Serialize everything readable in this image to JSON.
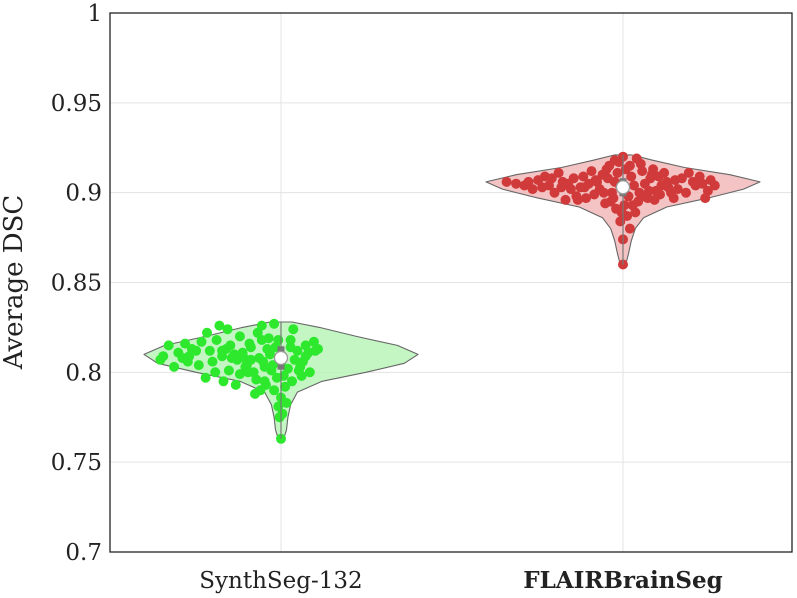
{
  "chart_data": {
    "type": "violin",
    "ylabel": "Average DSC",
    "ylim": [
      0.7,
      1.0
    ],
    "yticks": [
      {
        "value": 0.7,
        "label": "0.7"
      },
      {
        "value": 0.75,
        "label": "0.75"
      },
      {
        "value": 0.8,
        "label": "0.8"
      },
      {
        "value": 0.85,
        "label": "0.85"
      },
      {
        "value": 0.9,
        "label": "0.9"
      },
      {
        "value": 0.95,
        "label": "0.95"
      },
      {
        "value": 1.0,
        "label": "1"
      }
    ],
    "grid": true,
    "categories": [
      "SynthSeg-132",
      "FLAIRBrainSeg"
    ],
    "bold_categories": [
      "FLAIRBrainSeg"
    ],
    "series": [
      {
        "category": "SynthSeg-132",
        "color": "#2ee82e",
        "fill": "#b8f5b8",
        "median": 0.808,
        "q1": 0.8015,
        "q3": 0.8145,
        "range": [
          0.763,
          0.828
        ],
        "density": [
          [
            0.763,
            0.02
          ],
          [
            0.768,
            0.04
          ],
          [
            0.775,
            0.05
          ],
          [
            0.782,
            0.07
          ],
          [
            0.789,
            0.12
          ],
          [
            0.795,
            0.3
          ],
          [
            0.8,
            0.62
          ],
          [
            0.805,
            0.9
          ],
          [
            0.81,
            1.0
          ],
          [
            0.815,
            0.85
          ],
          [
            0.82,
            0.55
          ],
          [
            0.825,
            0.28
          ],
          [
            0.828,
            0.08
          ]
        ],
        "points": [
          [
            0.3,
            0.816
          ],
          [
            0.18,
            0.815
          ],
          [
            0.25,
            0.811
          ],
          [
            0.14,
            0.809
          ],
          [
            0.32,
            0.806
          ],
          [
            0.22,
            0.803
          ],
          [
            0.38,
            0.812
          ],
          [
            0.28,
            0.808
          ],
          [
            0.12,
            0.807
          ],
          [
            0.35,
            0.813
          ],
          [
            0.42,
            0.817
          ],
          [
            0.46,
            0.822
          ],
          [
            0.48,
            0.812
          ],
          [
            0.5,
            0.806
          ],
          [
            0.53,
            0.818
          ],
          [
            0.55,
            0.826
          ],
          [
            0.57,
            0.809
          ],
          [
            0.6,
            0.813
          ],
          [
            0.61,
            0.824
          ],
          [
            0.63,
            0.815
          ],
          [
            0.66,
            0.81
          ],
          [
            0.68,
            0.807
          ],
          [
            0.7,
            0.82
          ],
          [
            0.72,
            0.811
          ],
          [
            0.74,
            0.803
          ],
          [
            0.77,
            0.816
          ],
          [
            0.45,
            0.797
          ],
          [
            0.52,
            0.8
          ],
          [
            0.58,
            0.795
          ],
          [
            0.62,
            0.801
          ],
          [
            0.67,
            0.793
          ],
          [
            0.7,
            0.799
          ],
          [
            0.73,
            0.808
          ],
          [
            0.75,
            0.804
          ],
          [
            0.78,
            0.814
          ],
          [
            0.8,
            0.8
          ],
          [
            0.82,
            0.796
          ],
          [
            0.84,
            0.808
          ],
          [
            0.86,
            0.818
          ],
          [
            0.88,
            0.803
          ],
          [
            0.9,
            0.813
          ],
          [
            0.92,
            0.81
          ],
          [
            0.94,
            0.804
          ],
          [
            0.96,
            0.814
          ],
          [
            0.98,
            0.818
          ],
          [
            1.0,
            0.805
          ],
          [
            1.02,
            0.798
          ],
          [
            1.05,
            0.802
          ],
          [
            1.07,
            0.818
          ],
          [
            1.1,
            0.807
          ],
          [
            1.12,
            0.812
          ],
          [
            1.15,
            0.798
          ],
          [
            1.18,
            0.815
          ],
          [
            1.21,
            0.8
          ],
          [
            1.24,
            0.817
          ],
          [
            1.27,
            0.813
          ],
          [
            0.95,
            0.79
          ],
          [
            1.0,
            0.786
          ],
          [
            1.03,
            0.792
          ],
          [
            0.98,
            0.781
          ],
          [
            1.01,
            0.777
          ],
          [
            1.04,
            0.783
          ],
          [
            0.99,
            0.775
          ],
          [
            1.0,
            0.763
          ],
          [
            0.97,
            0.797
          ],
          [
            1.08,
            0.795
          ],
          [
            1.13,
            0.801
          ],
          [
            1.16,
            0.806
          ],
          [
            0.88,
            0.795
          ],
          [
            0.93,
            0.801
          ],
          [
            0.85,
            0.79
          ],
          [
            0.89,
            0.793
          ],
          [
            0.76,
            0.8
          ],
          [
            0.81,
            0.788
          ],
          [
            0.87,
            0.806
          ],
          [
            0.64,
            0.808
          ],
          [
            0.57,
            0.812
          ],
          [
            0.4,
            0.804
          ],
          [
            0.33,
            0.809
          ],
          [
            1.2,
            0.811
          ],
          [
            1.07,
            0.814
          ],
          [
            0.91,
            0.819
          ],
          [
            0.95,
            0.827
          ],
          [
            1.09,
            0.824
          ],
          [
            0.83,
            0.822
          ],
          [
            0.86,
            0.826
          ],
          [
            0.78,
            0.807
          ],
          [
            1.14,
            0.803
          ],
          [
            1.18,
            0.809
          ],
          [
            1.25,
            0.812
          ]
        ]
      },
      {
        "category": "FLAIRBrainSeg",
        "color": "#d13a3a",
        "fill": "#f2b8b8",
        "median": 0.903,
        "q1": 0.898,
        "q3": 0.908,
        "range": [
          0.86,
          0.921
        ],
        "density": [
          [
            0.86,
            0.02
          ],
          [
            0.866,
            0.04
          ],
          [
            0.873,
            0.06
          ],
          [
            0.88,
            0.09
          ],
          [
            0.886,
            0.15
          ],
          [
            0.892,
            0.32
          ],
          [
            0.897,
            0.62
          ],
          [
            0.902,
            0.88
          ],
          [
            0.906,
            1.0
          ],
          [
            0.91,
            0.78
          ],
          [
            0.914,
            0.45
          ],
          [
            0.918,
            0.22
          ],
          [
            0.921,
            0.06
          ]
        ],
        "points": [
          [
            0.15,
            0.906
          ],
          [
            0.22,
            0.905
          ],
          [
            0.28,
            0.904
          ],
          [
            0.34,
            0.902
          ],
          [
            0.38,
            0.907
          ],
          [
            0.43,
            0.909
          ],
          [
            0.46,
            0.904
          ],
          [
            0.5,
            0.9
          ],
          [
            0.53,
            0.911
          ],
          [
            0.56,
            0.906
          ],
          [
            0.58,
            0.896
          ],
          [
            0.62,
            0.902
          ],
          [
            0.64,
            0.908
          ],
          [
            0.66,
            0.898
          ],
          [
            0.69,
            0.903
          ],
          [
            0.71,
            0.909
          ],
          [
            0.73,
            0.897
          ],
          [
            0.75,
            0.905
          ],
          [
            0.77,
            0.912
          ],
          [
            0.79,
            0.899
          ],
          [
            0.81,
            0.906
          ],
          [
            0.83,
            0.902
          ],
          [
            0.85,
            0.91
          ],
          [
            0.87,
            0.894
          ],
          [
            0.89,
            0.908
          ],
          [
            0.9,
            0.915
          ],
          [
            0.92,
            0.9
          ],
          [
            0.94,
            0.906
          ],
          [
            0.96,
            0.911
          ],
          [
            0.98,
            0.903
          ],
          [
            0.97,
            0.917
          ],
          [
            1.0,
            0.92
          ],
          [
            1.02,
            0.913
          ],
          [
            1.04,
            0.898
          ],
          [
            1.06,
            0.909
          ],
          [
            1.08,
            0.904
          ],
          [
            1.1,
            0.919
          ],
          [
            1.12,
            0.9
          ],
          [
            1.14,
            0.912
          ],
          [
            1.16,
            0.905
          ],
          [
            1.18,
            0.897
          ],
          [
            1.2,
            0.908
          ],
          [
            1.22,
            0.913
          ],
          [
            1.24,
            0.901
          ],
          [
            1.26,
            0.909
          ],
          [
            1.28,
            0.904
          ],
          [
            1.3,
            0.911
          ],
          [
            1.32,
            0.906
          ],
          [
            1.35,
            0.9
          ],
          [
            1.38,
            0.907
          ],
          [
            1.4,
            0.902
          ],
          [
            1.43,
            0.908
          ],
          [
            1.46,
            0.9
          ],
          [
            1.48,
            0.911
          ],
          [
            1.51,
            0.906
          ],
          [
            1.53,
            0.904
          ],
          [
            1.56,
            0.909
          ],
          [
            1.58,
            0.905
          ],
          [
            1.6,
            0.897
          ],
          [
            1.62,
            0.901
          ],
          [
            1.64,
            0.907
          ],
          [
            1.67,
            0.904
          ],
          [
            0.99,
            0.889
          ],
          [
            1.01,
            0.893
          ],
          [
            0.98,
            0.884
          ],
          [
            1.03,
            0.887
          ],
          [
            1.0,
            0.874
          ],
          [
            1.05,
            0.88
          ],
          [
            1.0,
            0.86
          ],
          [
            0.95,
            0.891
          ],
          [
            1.07,
            0.893
          ],
          [
            1.09,
            0.889
          ],
          [
            0.91,
            0.895
          ],
          [
            1.11,
            0.895
          ],
          [
            0.93,
            0.897
          ],
          [
            0.86,
            0.9
          ],
          [
            0.8,
            0.907
          ],
          [
            0.72,
            0.903
          ],
          [
            0.67,
            0.896
          ],
          [
            1.15,
            0.898
          ],
          [
            1.19,
            0.901
          ],
          [
            1.23,
            0.896
          ],
          [
            1.27,
            0.899
          ],
          [
            1.33,
            0.903
          ],
          [
            1.37,
            0.897
          ],
          [
            0.88,
            0.913
          ],
          [
            0.94,
            0.918
          ],
          [
            1.05,
            0.915
          ],
          [
            1.13,
            0.916
          ],
          [
            1.21,
            0.91
          ],
          [
            0.6,
            0.905
          ],
          [
            0.55,
            0.903
          ],
          [
            0.48,
            0.908
          ],
          [
            0.41,
            0.903
          ],
          [
            0.31,
            0.906
          ]
        ]
      }
    ]
  }
}
